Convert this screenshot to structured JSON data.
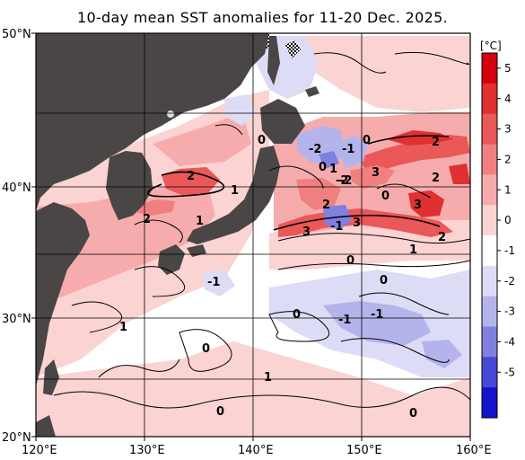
{
  "title": "10-day mean SST anomalies for 11-20 Dec. 2025.",
  "x_ticks": [
    "120°E",
    "130°E",
    "140°E",
    "150°E",
    "160°E"
  ],
  "y_ticks": [
    "50°N",
    "40°N",
    "30°N",
    "20°N"
  ],
  "colorbar": {
    "unit": "[°C]",
    "labels": [
      "5",
      "4",
      "3",
      "2",
      "1",
      "0",
      "-1",
      "-2",
      "-3",
      "-4",
      "-5"
    ],
    "colors": [
      "#d40010",
      "#e03030",
      "#ea5858",
      "#f08080",
      "#f6acac",
      "#fbd3d3",
      "#ffffff",
      "#dcdcf6",
      "#b4b4ec",
      "#8080e0",
      "#4848d6",
      "#1414cc"
    ]
  },
  "land_color": "#4a4646",
  "contour_labels": [
    {
      "text": "0"
    },
    {
      "text": "-2"
    },
    {
      "text": "-1"
    },
    {
      "text": "0"
    },
    {
      "text": "2"
    },
    {
      "text": "0"
    },
    {
      "text": "1"
    },
    {
      "text": "-2"
    },
    {
      "text": "3"
    },
    {
      "text": "2"
    },
    {
      "text": "1"
    },
    {
      "text": "2"
    },
    {
      "text": "2"
    },
    {
      "text": "-2"
    },
    {
      "text": "0"
    },
    {
      "text": "3"
    },
    {
      "text": "1"
    },
    {
      "text": "2"
    },
    {
      "text": "-1"
    },
    {
      "text": "3"
    },
    {
      "text": "3"
    },
    {
      "text": "2"
    },
    {
      "text": "1"
    },
    {
      "text": "0"
    },
    {
      "text": "0"
    },
    {
      "text": "-1"
    },
    {
      "text": "0"
    },
    {
      "text": "1"
    },
    {
      "text": "-1"
    },
    {
      "text": "-1"
    },
    {
      "text": "0"
    },
    {
      "text": "1"
    },
    {
      "text": "0"
    },
    {
      "text": "0"
    }
  ]
}
